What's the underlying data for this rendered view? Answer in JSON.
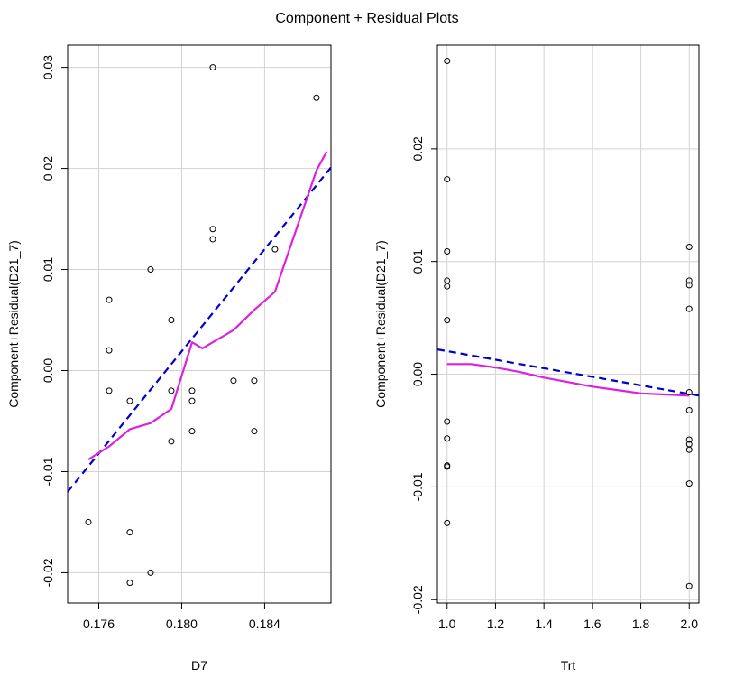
{
  "title": "Component + Residual Plots",
  "colors": {
    "line": "#0000cc",
    "smooth": "#dd22dd",
    "grid": "#d3d3d3",
    "points": "#000000"
  },
  "chart_data": [
    {
      "type": "scatter",
      "xlabel": "D7",
      "ylabel": "Component+Residual(D21_7)",
      "xlim": [
        0.1745,
        0.1872
      ],
      "ylim": [
        -0.023,
        0.0322
      ],
      "xticks": [
        0.176,
        0.18,
        0.184
      ],
      "xtick_labels": [
        "0.176",
        "0.180",
        "0.184"
      ],
      "yticks": [
        -0.02,
        -0.01,
        0.0,
        0.01,
        0.02,
        0.03
      ],
      "ytick_labels": [
        "-0.02",
        "-0.01",
        "0.00",
        "0.01",
        "0.02",
        "0.03"
      ],
      "grid": true,
      "points": [
        {
          "x": 0.1755,
          "y": -0.015
        },
        {
          "x": 0.1765,
          "y": 0.007
        },
        {
          "x": 0.1765,
          "y": 0.002
        },
        {
          "x": 0.1765,
          "y": -0.002
        },
        {
          "x": 0.1775,
          "y": -0.003
        },
        {
          "x": 0.1775,
          "y": -0.016
        },
        {
          "x": 0.1775,
          "y": -0.021
        },
        {
          "x": 0.1785,
          "y": 0.01
        },
        {
          "x": 0.1785,
          "y": -0.02
        },
        {
          "x": 0.1795,
          "y": 0.005
        },
        {
          "x": 0.1795,
          "y": -0.002
        },
        {
          "x": 0.1795,
          "y": -0.007
        },
        {
          "x": 0.1805,
          "y": -0.002
        },
        {
          "x": 0.1805,
          "y": -0.003
        },
        {
          "x": 0.1805,
          "y": -0.006
        },
        {
          "x": 0.1815,
          "y": 0.03
        },
        {
          "x": 0.1815,
          "y": 0.014
        },
        {
          "x": 0.1815,
          "y": 0.013
        },
        {
          "x": 0.1825,
          "y": -0.001
        },
        {
          "x": 0.1835,
          "y": -0.001
        },
        {
          "x": 0.1835,
          "y": -0.006
        },
        {
          "x": 0.1845,
          "y": 0.012
        },
        {
          "x": 0.1865,
          "y": 0.027
        }
      ],
      "fit_line": [
        {
          "x": 0.1745,
          "y": -0.012
        },
        {
          "x": 0.1872,
          "y": 0.0201
        }
      ],
      "smooth": [
        {
          "x": 0.1755,
          "y": -0.0088
        },
        {
          "x": 0.1765,
          "y": -0.0075
        },
        {
          "x": 0.1775,
          "y": -0.0058
        },
        {
          "x": 0.1785,
          "y": -0.0052
        },
        {
          "x": 0.1795,
          "y": -0.0038
        },
        {
          "x": 0.1805,
          "y": 0.0028
        },
        {
          "x": 0.181,
          "y": 0.0022
        },
        {
          "x": 0.1825,
          "y": 0.004
        },
        {
          "x": 0.1835,
          "y": 0.006
        },
        {
          "x": 0.1845,
          "y": 0.0078
        },
        {
          "x": 0.1855,
          "y": 0.0138
        },
        {
          "x": 0.1865,
          "y": 0.0198
        },
        {
          "x": 0.187,
          "y": 0.0217
        }
      ]
    },
    {
      "type": "scatter",
      "xlabel": "Trt",
      "ylabel": "Component+Residual(D21_7)",
      "xlim": [
        0.96,
        2.04
      ],
      "ylim": [
        -0.0203,
        0.0292
      ],
      "xticks": [
        1.0,
        1.2,
        1.4,
        1.6,
        1.8,
        2.0
      ],
      "xtick_labels": [
        "1.0",
        "1.2",
        "1.4",
        "1.6",
        "1.8",
        "2.0"
      ],
      "yticks": [
        -0.02,
        -0.01,
        0.0,
        0.01,
        0.02
      ],
      "ytick_labels": [
        "-0.02",
        "-0.01",
        "0.00",
        "0.01",
        "0.02"
      ],
      "grid": true,
      "points": [
        {
          "x": 1.0,
          "y": 0.0278
        },
        {
          "x": 1.0,
          "y": 0.0173
        },
        {
          "x": 1.0,
          "y": 0.0109
        },
        {
          "x": 1.0,
          "y": 0.0083
        },
        {
          "x": 1.0,
          "y": 0.0078
        },
        {
          "x": 1.0,
          "y": 0.0048
        },
        {
          "x": 1.0,
          "y": -0.0042
        },
        {
          "x": 1.0,
          "y": -0.0057
        },
        {
          "x": 1.0,
          "y": -0.0081
        },
        {
          "x": 1.0,
          "y": -0.0082
        },
        {
          "x": 1.0,
          "y": -0.0132
        },
        {
          "x": 2.0,
          "y": 0.0113
        },
        {
          "x": 2.0,
          "y": 0.0083
        },
        {
          "x": 2.0,
          "y": 0.0079
        },
        {
          "x": 2.0,
          "y": 0.0058
        },
        {
          "x": 2.0,
          "y": -0.0016
        },
        {
          "x": 2.0,
          "y": -0.0032
        },
        {
          "x": 2.0,
          "y": -0.0058
        },
        {
          "x": 2.0,
          "y": -0.0062
        },
        {
          "x": 2.0,
          "y": -0.0067
        },
        {
          "x": 2.0,
          "y": -0.0097
        },
        {
          "x": 2.0,
          "y": -0.0188
        }
      ],
      "fit_line": [
        {
          "x": 0.96,
          "y": 0.0022
        },
        {
          "x": 2.04,
          "y": -0.0019
        }
      ],
      "smooth": [
        {
          "x": 1.0,
          "y": 0.0009
        },
        {
          "x": 1.1,
          "y": 0.0009
        },
        {
          "x": 1.2,
          "y": 0.0006
        },
        {
          "x": 1.3,
          "y": 0.0002
        },
        {
          "x": 1.4,
          "y": -0.0003
        },
        {
          "x": 1.5,
          "y": -0.0007
        },
        {
          "x": 1.6,
          "y": -0.0011
        },
        {
          "x": 1.7,
          "y": -0.0014
        },
        {
          "x": 1.8,
          "y": -0.0017
        },
        {
          "x": 1.9,
          "y": -0.0018
        },
        {
          "x": 2.0,
          "y": -0.0019
        }
      ]
    }
  ]
}
